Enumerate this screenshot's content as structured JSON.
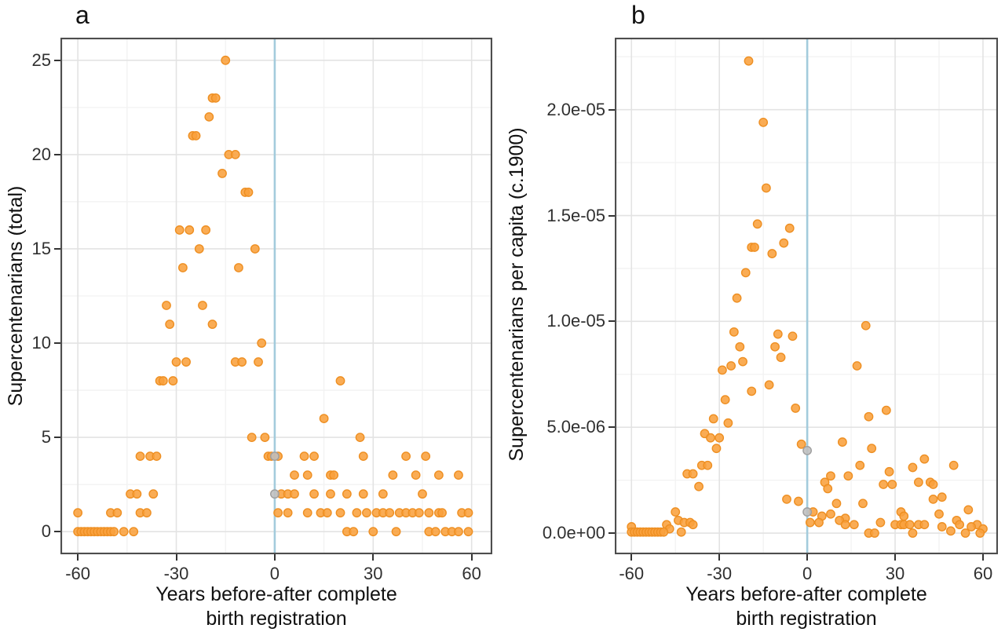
{
  "figure": {
    "background": "#ffffff",
    "border_color": "#4d4d4d",
    "grid_major_color": "#e3e3e3",
    "grid_minor_color": "#f2f2f2"
  },
  "chart_data": [
    {
      "type": "scatter",
      "panel_label": "a",
      "ylabel": "Supercentenarians (total)",
      "xlabel": "Years before-after complete birth registration",
      "xlabel_lines": [
        "Years before-after complete",
        "birth registration"
      ],
      "xlim": [
        -65.3,
        66.3
      ],
      "ylim": [
        -1.2,
        26.2
      ],
      "x_ticks": [
        {
          "v": -60,
          "label": "-60"
        },
        {
          "v": -30,
          "label": "-30"
        },
        {
          "v": 0,
          "label": "0"
        },
        {
          "v": 30,
          "label": "30"
        },
        {
          "v": 60,
          "label": "60"
        }
      ],
      "y_ticks": [
        {
          "v": 0,
          "label": "0"
        },
        {
          "v": 5,
          "label": "5"
        },
        {
          "v": 10,
          "label": "10"
        },
        {
          "v": 15,
          "label": "15"
        },
        {
          "v": 20,
          "label": "20"
        },
        {
          "v": 25,
          "label": "25"
        }
      ],
      "x_minor": [
        -45,
        -15,
        15,
        45
      ],
      "y_minor": [
        2.5,
        7.5,
        12.5,
        17.5,
        22.5
      ],
      "vline_x": 0,
      "grid": true,
      "legend": "none",
      "colors": {
        "point": "#F9A13C",
        "point_stroke": "#EE8F22",
        "gray_point": "#BFBFBF",
        "gray_point_stroke": "#9E9E9E",
        "vline": "#A3CBDC"
      },
      "series": [
        {
          "name": "jurisdictions",
          "points": [
            [
              -15,
              25
            ],
            [
              -19,
              23
            ],
            [
              -18,
              23
            ],
            [
              -20,
              22
            ],
            [
              -25,
              21
            ],
            [
              -24,
              21
            ],
            [
              -14,
              20
            ],
            [
              -12,
              20
            ],
            [
              -16,
              19
            ],
            [
              -9,
              18
            ],
            [
              -8,
              18
            ],
            [
              -29,
              16
            ],
            [
              -26,
              16
            ],
            [
              -21,
              16
            ],
            [
              -23,
              15
            ],
            [
              -6,
              15
            ],
            [
              -28,
              14
            ],
            [
              -11,
              14
            ],
            [
              -33,
              12
            ],
            [
              -22,
              12
            ],
            [
              -32,
              11
            ],
            [
              -19,
              11
            ],
            [
              -4,
              10
            ],
            [
              -30,
              9
            ],
            [
              -27,
              9
            ],
            [
              -12,
              9
            ],
            [
              -10,
              9
            ],
            [
              -5,
              9
            ],
            [
              -35,
              8
            ],
            [
              -34,
              8
            ],
            [
              -31,
              8
            ],
            [
              20,
              8
            ],
            [
              15,
              6
            ],
            [
              -7,
              5
            ],
            [
              -3,
              5
            ],
            [
              26,
              5
            ],
            [
              -41,
              4
            ],
            [
              -38,
              4
            ],
            [
              -36,
              4
            ],
            [
              -2,
              4
            ],
            [
              -1,
              4
            ],
            [
              1,
              4
            ],
            [
              9,
              4
            ],
            [
              12,
              4
            ],
            [
              27,
              4
            ],
            [
              40,
              4
            ],
            [
              46,
              4
            ],
            [
              6,
              3
            ],
            [
              10,
              3
            ],
            [
              17,
              3
            ],
            [
              18,
              3
            ],
            [
              36,
              3
            ],
            [
              43,
              3
            ],
            [
              50,
              3
            ],
            [
              56,
              3
            ],
            [
              -44,
              2
            ],
            [
              -42,
              2
            ],
            [
              -37,
              2
            ],
            [
              2,
              2
            ],
            [
              4,
              2
            ],
            [
              6,
              2
            ],
            [
              12,
              2
            ],
            [
              17,
              2
            ],
            [
              22,
              2
            ],
            [
              27,
              2
            ],
            [
              33,
              2
            ],
            [
              45,
              2
            ],
            [
              -60,
              1
            ],
            [
              -50,
              1
            ],
            [
              -48,
              1
            ],
            [
              -41,
              1
            ],
            [
              -39,
              1
            ],
            [
              1,
              1
            ],
            [
              4,
              1
            ],
            [
              10,
              1
            ],
            [
              14,
              1
            ],
            [
              16,
              1
            ],
            [
              20,
              1
            ],
            [
              25,
              1
            ],
            [
              28,
              1
            ],
            [
              31,
              1
            ],
            [
              33,
              1
            ],
            [
              35,
              1
            ],
            [
              38,
              1
            ],
            [
              40,
              1
            ],
            [
              42,
              1
            ],
            [
              44,
              1
            ],
            [
              47,
              1
            ],
            [
              50,
              1
            ],
            [
              51,
              1
            ],
            [
              57,
              1
            ],
            [
              59,
              1
            ],
            [
              -60,
              0
            ],
            [
              -59,
              0
            ],
            [
              -58,
              0
            ],
            [
              -57,
              0
            ],
            [
              -56,
              0
            ],
            [
              -55,
              0
            ],
            [
              -54,
              0
            ],
            [
              -53,
              0
            ],
            [
              -52,
              0
            ],
            [
              -51,
              0
            ],
            [
              -50,
              0
            ],
            [
              -49,
              0
            ],
            [
              -46,
              0
            ],
            [
              -43,
              0
            ],
            [
              22,
              0
            ],
            [
              24,
              0
            ],
            [
              30,
              0
            ],
            [
              37,
              0
            ],
            [
              47,
              0
            ],
            [
              49,
              0
            ],
            [
              52,
              0
            ],
            [
              54,
              0
            ],
            [
              56,
              0
            ],
            [
              59,
              0
            ]
          ]
        },
        {
          "name": "year-zero-gray",
          "points": [
            [
              0,
              4
            ],
            [
              0,
              2
            ]
          ]
        }
      ]
    },
    {
      "type": "scatter",
      "panel_label": "b",
      "ylabel": "Supercentenarians per capita (c.1900)",
      "xlabel": "Years before-after complete birth registration",
      "xlabel_lines": [
        "Years before-after complete",
        "birth registration"
      ],
      "xlim": [
        -65.7,
        65.1
      ],
      "ylim": [
        -1e-06,
        2.34e-05
      ],
      "x_ticks": [
        {
          "v": -60,
          "label": "-60"
        },
        {
          "v": -30,
          "label": "-30"
        },
        {
          "v": 0,
          "label": "0"
        },
        {
          "v": 30,
          "label": "30"
        },
        {
          "v": 60,
          "label": "60"
        }
      ],
      "y_ticks": [
        {
          "v": 0,
          "label": "0.0e+00"
        },
        {
          "v": 5e-06,
          "label": "5.0e-06"
        },
        {
          "v": 1e-05,
          "label": "1.0e-05"
        },
        {
          "v": 1.5e-05,
          "label": "1.5e-05"
        },
        {
          "v": 2e-05,
          "label": "2.0e-05"
        }
      ],
      "x_minor": [
        -45,
        -15,
        15,
        45
      ],
      "y_minor": [
        2.5e-06,
        7.5e-06,
        1.25e-05,
        1.75e-05,
        2.25e-05
      ],
      "vline_x": 0,
      "grid": true,
      "legend": "none",
      "colors": {
        "point": "#F9A13C",
        "point_stroke": "#EE8F22",
        "gray_point": "#BFBFBF",
        "gray_point_stroke": "#9E9E9E",
        "vline": "#A3CBDC"
      },
      "series": [
        {
          "name": "jurisdictions",
          "points": [
            [
              -20,
              2.23e-05
            ],
            [
              -15,
              1.94e-05
            ],
            [
              -14,
              1.63e-05
            ],
            [
              -17,
              1.46e-05
            ],
            [
              -6,
              1.44e-05
            ],
            [
              -8,
              1.37e-05
            ],
            [
              -19,
              1.35e-05
            ],
            [
              -18,
              1.35e-05
            ],
            [
              -12,
              1.32e-05
            ],
            [
              -21,
              1.23e-05
            ],
            [
              -24,
              1.11e-05
            ],
            [
              -25,
              9.5e-06
            ],
            [
              -10,
              9.4e-06
            ],
            [
              -5,
              9.3e-06
            ],
            [
              -23,
              8.8e-06
            ],
            [
              -11,
              8.8e-06
            ],
            [
              -9,
              8.3e-06
            ],
            [
              -22,
              8.1e-06
            ],
            [
              -26,
              7.9e-06
            ],
            [
              -29,
              7.7e-06
            ],
            [
              -13,
              7e-06
            ],
            [
              -19,
              6.7e-06
            ],
            [
              -28,
              6.3e-06
            ],
            [
              -4,
              5.9e-06
            ],
            [
              -32,
              5.4e-06
            ],
            [
              -27,
              5.2e-06
            ],
            [
              -35,
              4.7e-06
            ],
            [
              -33,
              4.5e-06
            ],
            [
              -30,
              4.5e-06
            ],
            [
              -2,
              4.2e-06
            ],
            [
              -31,
              4e-06
            ],
            [
              -36,
              3.2e-06
            ],
            [
              -34,
              3.2e-06
            ],
            [
              -41,
              2.8e-06
            ],
            [
              -39,
              2.8e-06
            ],
            [
              -37,
              2.2e-06
            ],
            [
              -7,
              1.6e-06
            ],
            [
              -3,
              1.5e-06
            ],
            [
              -45,
              1e-06
            ],
            [
              -44,
              6e-07
            ],
            [
              -42,
              5e-07
            ],
            [
              -40,
              5e-07
            ],
            [
              -48,
              4e-07
            ],
            [
              -39,
              4e-07
            ],
            [
              -47,
              2e-07
            ],
            [
              -43,
              5e-08
            ],
            [
              -60,
              3e-07
            ],
            [
              -60,
              5e-08
            ],
            [
              -59,
              5e-08
            ],
            [
              -58,
              5e-08
            ],
            [
              -57,
              5e-08
            ],
            [
              -56,
              5e-08
            ],
            [
              -55,
              5e-08
            ],
            [
              -54,
              5e-08
            ],
            [
              -53,
              5e-08
            ],
            [
              -52,
              5e-08
            ],
            [
              -51,
              5e-08
            ],
            [
              -50,
              5e-08
            ],
            [
              -49,
              5e-08
            ],
            [
              20,
              9.8e-06
            ],
            [
              17,
              7.9e-06
            ],
            [
              27,
              5.8e-06
            ],
            [
              21,
              5.5e-06
            ],
            [
              12,
              4.3e-06
            ],
            [
              22,
              4e-06
            ],
            [
              40,
              3.5e-06
            ],
            [
              18,
              3.2e-06
            ],
            [
              50,
              3.2e-06
            ],
            [
              36,
              3.1e-06
            ],
            [
              28,
              2.9e-06
            ],
            [
              8,
              2.7e-06
            ],
            [
              14,
              2.7e-06
            ],
            [
              6,
              2.4e-06
            ],
            [
              38,
              2.4e-06
            ],
            [
              42,
              2.4e-06
            ],
            [
              29,
              2.3e-06
            ],
            [
              26,
              2.3e-06
            ],
            [
              43,
              2.3e-06
            ],
            [
              7,
              2.1e-06
            ],
            [
              46,
              1.7e-06
            ],
            [
              43,
              1.6e-06
            ],
            [
              19,
              1.4e-06
            ],
            [
              10,
              1.4e-06
            ],
            [
              55,
              1.1e-06
            ],
            [
              32,
              1e-06
            ],
            [
              2,
              1e-06
            ],
            [
              45,
              9e-07
            ],
            [
              8,
              9e-07
            ],
            [
              33,
              8e-07
            ],
            [
              5,
              8e-07
            ],
            [
              13,
              7e-07
            ],
            [
              11,
              6e-07
            ],
            [
              51,
              6e-07
            ],
            [
              1,
              5e-07
            ],
            [
              4,
              5e-07
            ],
            [
              25,
              5e-07
            ],
            [
              16,
              4e-07
            ],
            [
              30,
              4e-07
            ],
            [
              32,
              4e-07
            ],
            [
              33,
              4e-07
            ],
            [
              35,
              4e-07
            ],
            [
              38,
              4e-07
            ],
            [
              40,
              4e-07
            ],
            [
              52,
              4e-07
            ],
            [
              58,
              4e-07
            ],
            [
              46,
              3e-07
            ],
            [
              56,
              3e-07
            ],
            [
              60,
              2e-07
            ],
            [
              49,
              1e-07
            ],
            [
              13,
              4e-07
            ],
            [
              21,
              0
            ],
            [
              23,
              0
            ],
            [
              36,
              0
            ],
            [
              54,
              0
            ],
            [
              59,
              0
            ]
          ]
        },
        {
          "name": "year-zero-gray",
          "points": [
            [
              0,
              3.9e-06
            ],
            [
              0,
              1e-06
            ]
          ]
        }
      ]
    }
  ]
}
